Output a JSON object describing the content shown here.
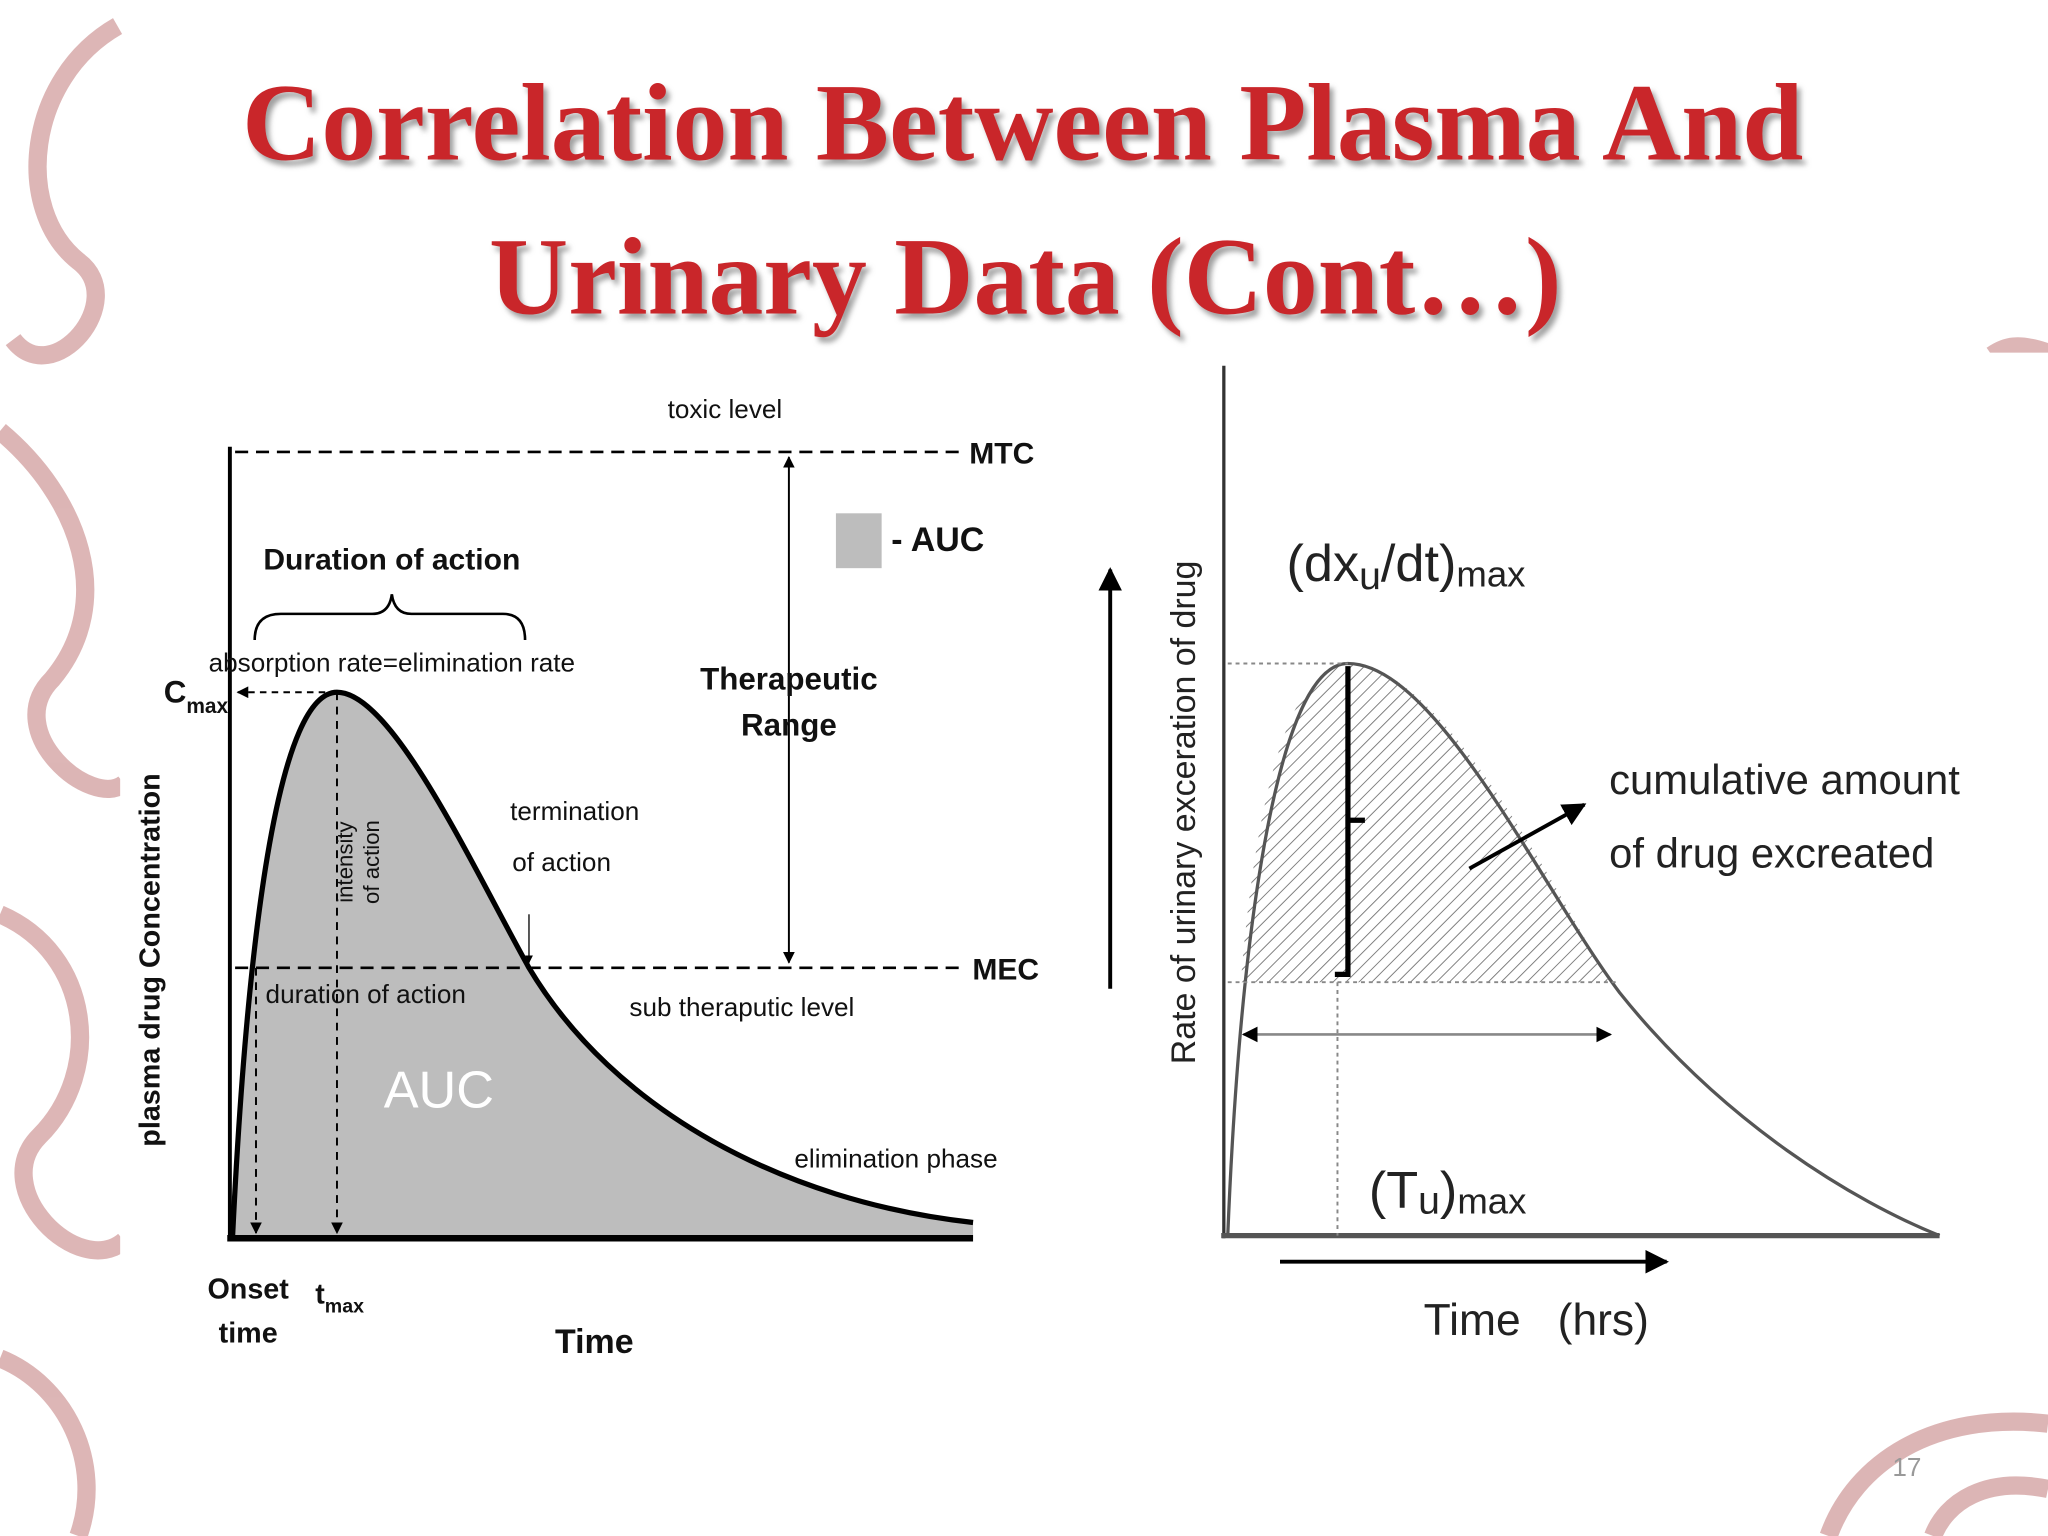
{
  "title": {
    "line1": "Correlation Between Plasma And",
    "line2": "Urinary Data (Cont…)"
  },
  "plasma_diagram": {
    "y_axis_label": "plasma drug Concentration",
    "x_axis_label": "Time",
    "toxic_level": "toxic level",
    "mtc": "MTC",
    "mec": "MEC",
    "legend": "- AUC",
    "duration_of_action_title": "Duration of action",
    "absorption_equals_elimination": "absorption rate=elimination rate",
    "cmax": {
      "main": "C",
      "sub": "max"
    },
    "intensity_of_action": [
      "intensity",
      "of action"
    ],
    "termination_of_action": [
      "termination",
      "of action"
    ],
    "therapeutic_range": [
      "Therapeutic",
      "Range"
    ],
    "duration_of_action": "duration of action",
    "sub_therapeutic_level": "sub theraputic level",
    "auc": "AUC",
    "elimination_phase": "elimination phase",
    "onset_time": [
      "Onset",
      "time"
    ],
    "tmax": {
      "main": "t",
      "sub": "max"
    }
  },
  "urinary_diagram": {
    "y_axis_label": "Rate of urinary exceration of drug",
    "x_axis_label": "Time   (hrs)",
    "peak_rate_label": [
      "(dx",
      "u",
      "/dt)",
      "max"
    ],
    "peak_time_label": [
      "(T",
      "u",
      ")",
      "max"
    ],
    "cumulative_label": [
      "cumulative amount",
      "of drug excreated"
    ]
  },
  "page_number": "17"
}
